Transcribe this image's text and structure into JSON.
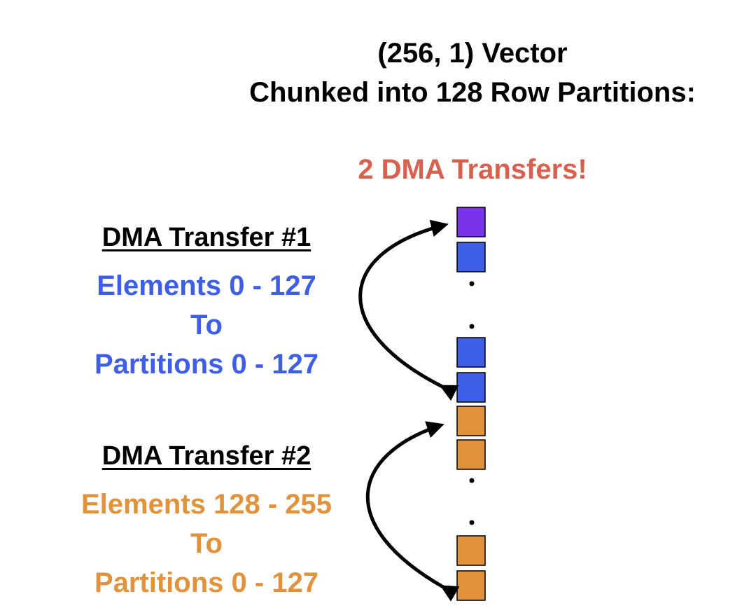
{
  "title": {
    "line1": "(256, 1) Vector",
    "line2": "Chunked into 128 Row Partitions:"
  },
  "subtitle": "2 DMA Transfers!",
  "transfers": [
    {
      "heading": "DMA Transfer #1",
      "line1": "Elements 0 - 127",
      "line2": "To",
      "line3": "Partitions 0 - 127",
      "color": "#3e5ee8"
    },
    {
      "heading": "DMA Transfer #2",
      "line1": "Elements 128 - 255",
      "line2": "To",
      "line3": "Partitions 0 - 127",
      "color": "#e2923a"
    }
  ],
  "colors": {
    "first_cell": "#7a33e8",
    "blue_cell": "#3e5ee8",
    "orange_cell": "#e2923a",
    "subtitle": "#d9604c",
    "arrow": "#000000"
  }
}
